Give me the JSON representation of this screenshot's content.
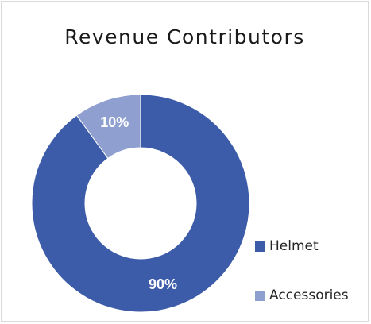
{
  "chart_data": {
    "type": "pie",
    "variant": "donut",
    "title": "Revenue Contributors",
    "categories": [
      "Helmet",
      "Accessories"
    ],
    "values": [
      90,
      10
    ],
    "labels": [
      "90%",
      "10%"
    ],
    "colors": [
      "#3c5ba8",
      "#8f9fcf"
    ],
    "legend_position": "right-bottom"
  }
}
